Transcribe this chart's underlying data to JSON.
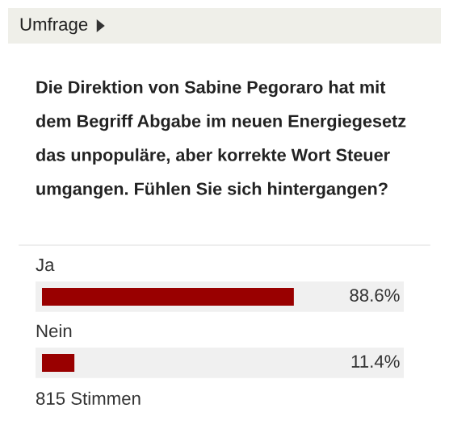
{
  "chart_data": {
    "type": "bar",
    "orientation": "horizontal",
    "title": "Umfrage",
    "subtitle": "Die Direktion von Sabine Pegoraro hat mit dem Begriff Abgabe im neuen Energiegesetz das unpopuläre, aber korrekte Wort Steuer umgangen. Fühlen Sie sich hintergangen?",
    "categories": [
      "Ja",
      "Nein"
    ],
    "values": [
      88.6,
      11.4
    ],
    "value_labels": [
      "88.6%",
      "11.4%"
    ],
    "color": "#990000",
    "annotations": [
      "815 Stimmen"
    ],
    "legend": false,
    "tick_labels": false
  }
}
